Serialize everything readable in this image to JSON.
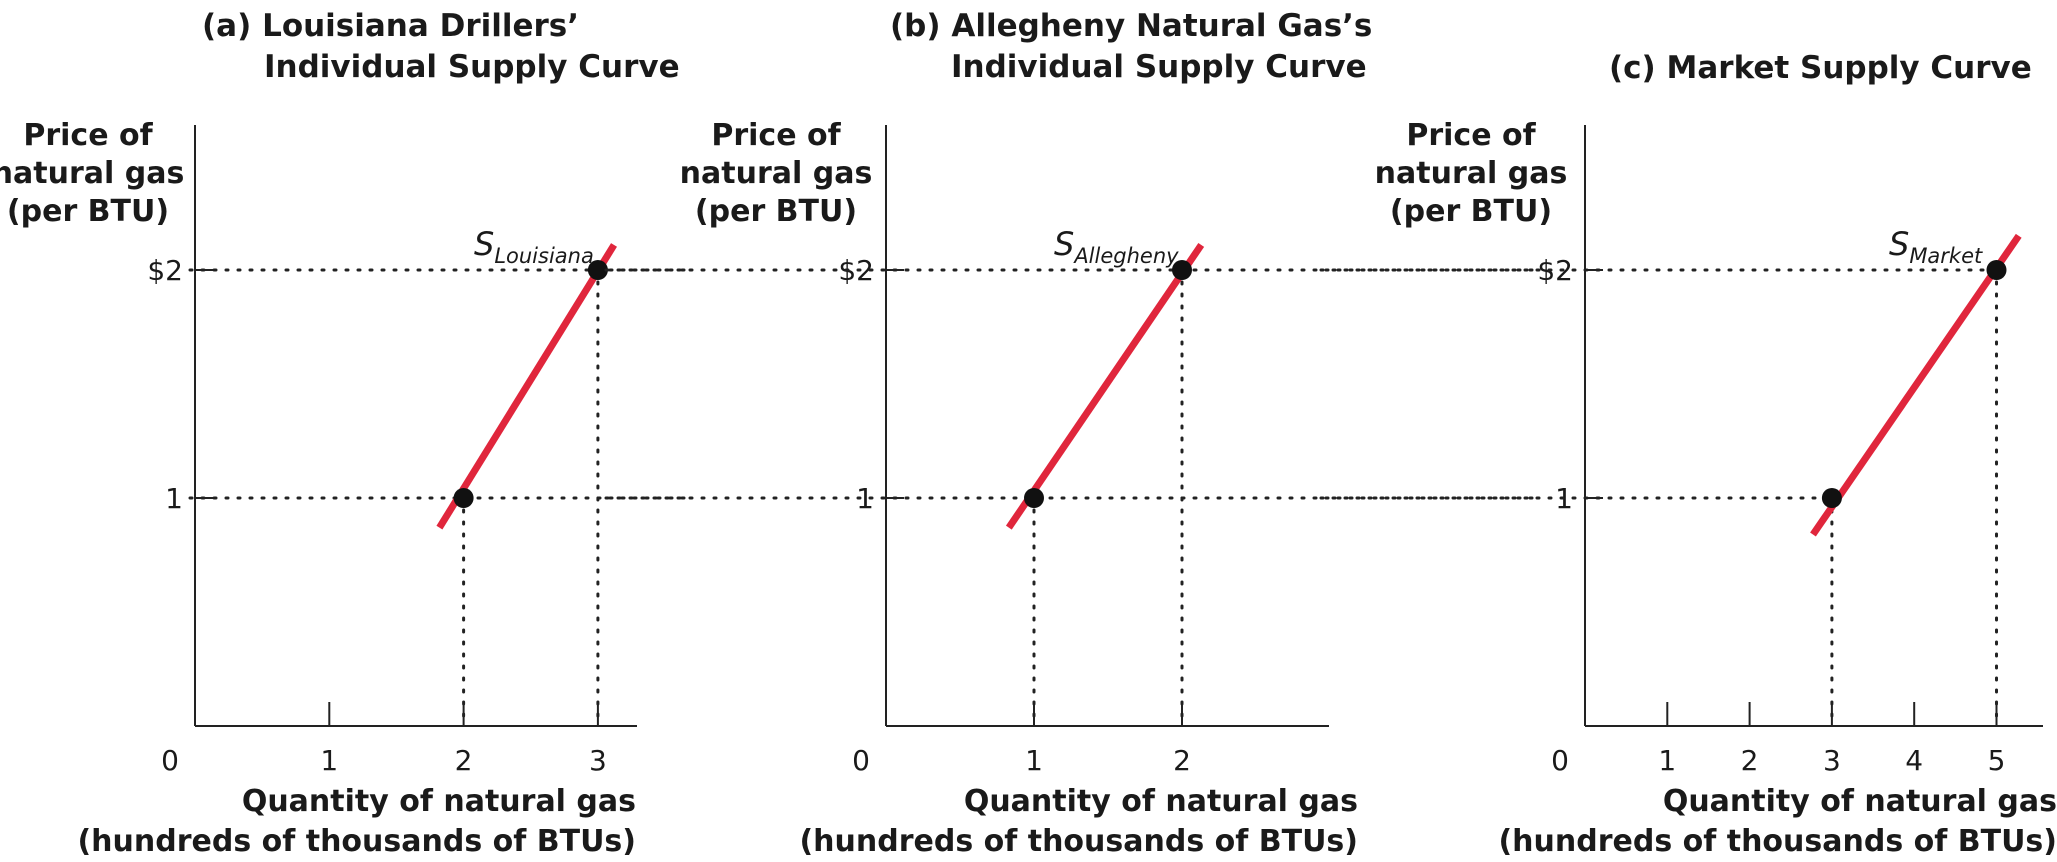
{
  "chart_data": [
    {
      "type": "line",
      "title_prefix": "(a)",
      "title_line1": "Louisiana Drillers’",
      "title_line2": "Individual Supply Curve",
      "ylabel": [
        "Price of",
        "natural gas",
        "(per BTU)"
      ],
      "xlabel": [
        "Quantity of natural gas",
        "(hundreds of thousands of BTUs)"
      ],
      "origin_label": "0",
      "xticks": [
        "1",
        "2",
        "3"
      ],
      "yticks": [
        "1",
        "$2"
      ],
      "xlim": [
        0,
        3.3
      ],
      "ylim": [
        0,
        2.7
      ],
      "curve_symbol": "S",
      "curve_subscript": "Louisiana",
      "series": [
        {
          "name": "SLouisiana",
          "x": [
            2,
            3
          ],
          "y": [
            1,
            2
          ]
        }
      ],
      "line_color": "#e0263c"
    },
    {
      "type": "line",
      "title_prefix": "(b)",
      "title_line1": "Allegheny Natural Gas’s",
      "title_line2": "Individual Supply Curve",
      "ylabel": [
        "Price of",
        "natural gas",
        "(per BTU)"
      ],
      "xlabel": [
        "Quantity of natural gas",
        "(hundreds of thousands of BTUs)"
      ],
      "origin_label": "0",
      "xticks": [
        "1",
        "2"
      ],
      "yticks": [
        "1",
        "$2"
      ],
      "xlim": [
        0,
        3
      ],
      "ylim": [
        0,
        2.7
      ],
      "curve_symbol": "S",
      "curve_subscript": "Allegheny",
      "series": [
        {
          "name": "SAllegheny",
          "x": [
            1,
            2
          ],
          "y": [
            1,
            2
          ]
        }
      ],
      "line_color": "#e0263c"
    },
    {
      "type": "line",
      "title_prefix": "(c)",
      "title_line1": "Market Supply Curve",
      "title_line2": "",
      "ylabel": [
        "Price of",
        "natural gas",
        "(per BTU)"
      ],
      "xlabel": [
        "Quantity of natural gas",
        "(hundreds of thousands of BTUs)"
      ],
      "origin_label": "0",
      "xticks": [
        "1",
        "2",
        "3",
        "4",
        "5"
      ],
      "yticks": [
        "1",
        "$2"
      ],
      "xlim": [
        0,
        5.7
      ],
      "ylim": [
        0,
        2.7
      ],
      "curve_symbol": "S",
      "curve_subscript": "Market",
      "series": [
        {
          "name": "SMarket",
          "x": [
            3,
            5
          ],
          "y": [
            1,
            2
          ]
        }
      ],
      "line_color": "#e0263c"
    }
  ]
}
